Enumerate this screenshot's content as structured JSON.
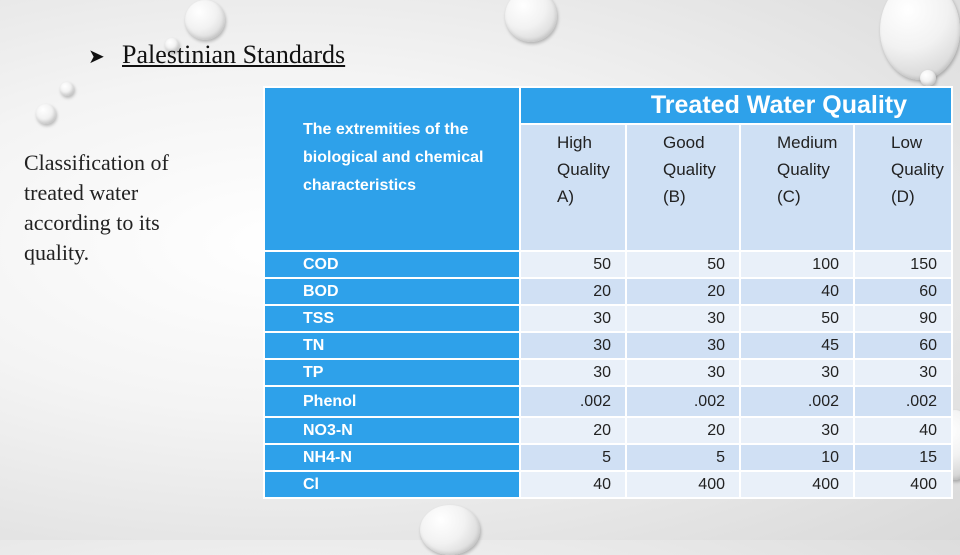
{
  "slide": {
    "title": "Palestinian Standards",
    "bullet_icon": "arrow-bullet-icon",
    "side_text": "Classification of treated water according to its quality."
  },
  "table": {
    "corner_header": "The extremities of the biological and chemical characteristics",
    "group_header": "Treated Water Quality",
    "columns": [
      {
        "line1": "High",
        "line2": "Quality",
        "line3": "A)"
      },
      {
        "line1": "Good",
        "line2": "Quality",
        "line3": "(B)"
      },
      {
        "line1": "Medium",
        "line2": "Quality",
        "line3": "(C)"
      },
      {
        "line1": "Low",
        "line2": "Quality",
        "line3": "(D)"
      }
    ],
    "rows": [
      {
        "label": "COD",
        "values": [
          "50",
          "50",
          "100",
          "150"
        ]
      },
      {
        "label": "BOD",
        "values": [
          "20",
          "20",
          "40",
          "60"
        ]
      },
      {
        "label": "TSS",
        "values": [
          "30",
          "30",
          "50",
          "90"
        ]
      },
      {
        "label": "TN",
        "values": [
          "30",
          "30",
          "45",
          "60"
        ]
      },
      {
        "label": "TP",
        "values": [
          "30",
          "30",
          "30",
          "30"
        ]
      },
      {
        "label": "Phenol",
        "values": [
          ".002",
          ".002",
          ".002",
          ".002"
        ]
      },
      {
        "label": "NO3-N",
        "values": [
          "20",
          "20",
          "30",
          "40"
        ]
      },
      {
        "label": "NH4-N",
        "values": [
          "5",
          "5",
          "10",
          "15"
        ]
      },
      {
        "label": "Cl",
        "values": [
          "40",
          "400",
          "400",
          "400"
        ]
      }
    ],
    "colors": {
      "header": "#2ea1ea",
      "row_light": "#e9f0f9",
      "row_dark": "#d0e0f4"
    }
  }
}
